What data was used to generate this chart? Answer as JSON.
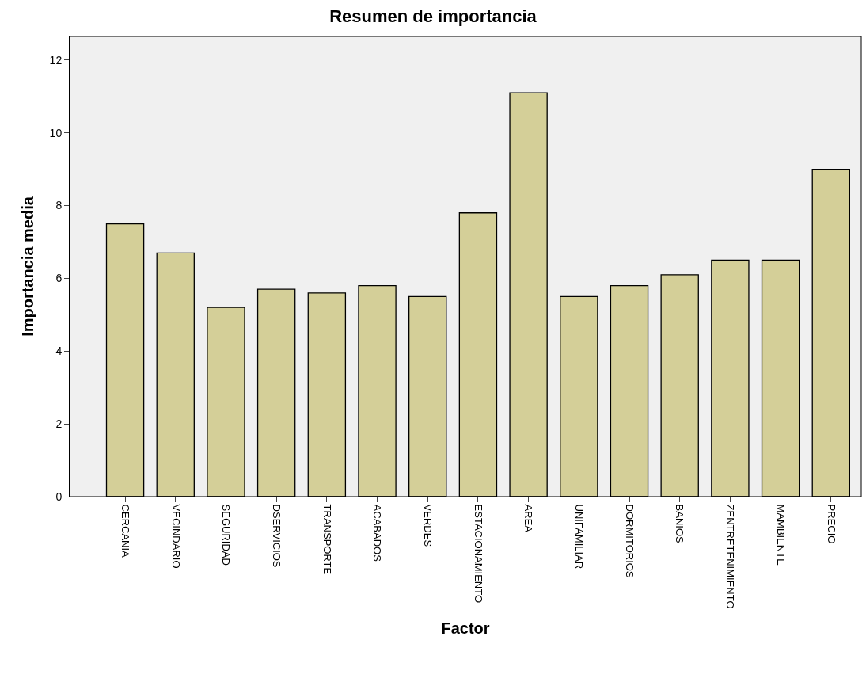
{
  "chart_data": {
    "type": "bar",
    "title": "Resumen de importancia",
    "xlabel": "Factor",
    "ylabel": "Importancia media",
    "categories": [
      "CERCANIA",
      "VECINDARIO",
      "SEGURIDAD",
      "DSERVICIOS",
      "TRANSPORTE",
      "ACABADOS",
      "VERDES",
      "ESTACIONAMIENTO",
      "AREA",
      "UNIFAMILIAR",
      "DORMITORIOS",
      "BANIOS",
      "ZENTRETENIMIENTO",
      "MAMBIENTE",
      "PRECIO"
    ],
    "values": [
      7.5,
      6.7,
      5.2,
      5.7,
      5.6,
      5.8,
      5.5,
      7.8,
      11.1,
      5.5,
      5.8,
      6.1,
      6.5,
      6.5,
      9.0
    ],
    "color": "#d4cf98",
    "ylim": [
      0,
      12.65
    ],
    "yticks": [
      0,
      2,
      4,
      6,
      8,
      10,
      12
    ],
    "grid": false
  }
}
